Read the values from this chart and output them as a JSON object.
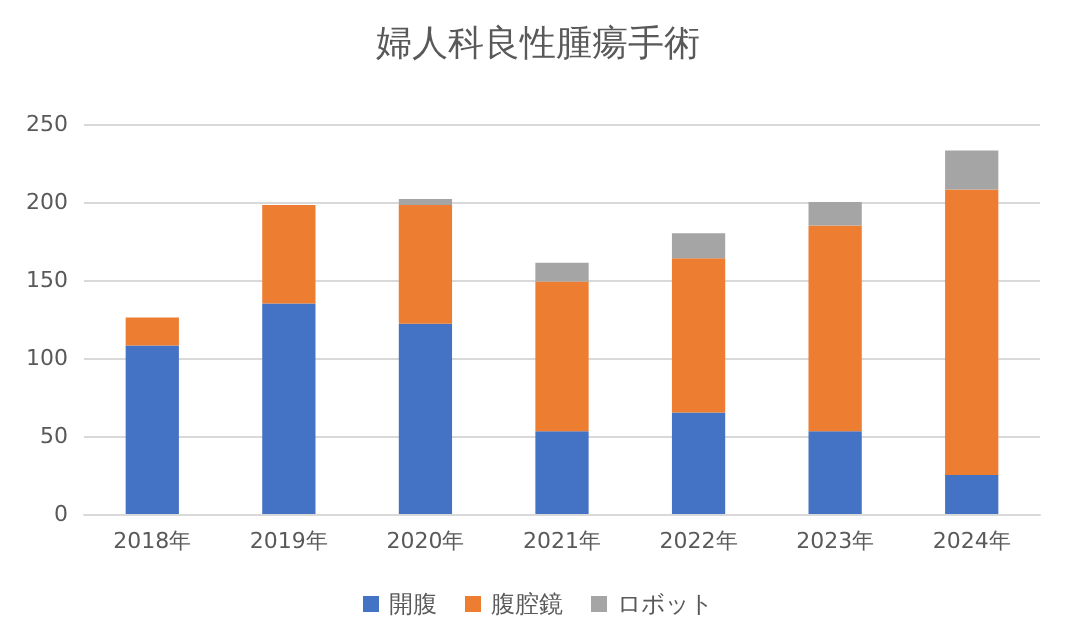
{
  "chart_data": {
    "type": "bar",
    "title": "婦人科良性腫瘍手術",
    "stacked": true,
    "categories": [
      "2018年",
      "2019年",
      "2020年",
      "2021年",
      "2022年",
      "2023年",
      "2024年"
    ],
    "series": [
      {
        "name": "開腹",
        "color": "#4472c4",
        "values": [
          108,
          135,
          122,
          53,
          65,
          53,
          25
        ]
      },
      {
        "name": "腹腔鏡",
        "color": "#ed7d31",
        "values": [
          18,
          63,
          76,
          96,
          99,
          132,
          183
        ]
      },
      {
        "name": "ロボット",
        "color": "#a5a5a5",
        "values": [
          null,
          null,
          4,
          12,
          16,
          15,
          25
        ]
      }
    ],
    "ylim": [
      0,
      250
    ],
    "yticks": [
      0,
      50,
      100,
      150,
      200,
      250
    ],
    "grid": "y",
    "legend": "bottom"
  }
}
